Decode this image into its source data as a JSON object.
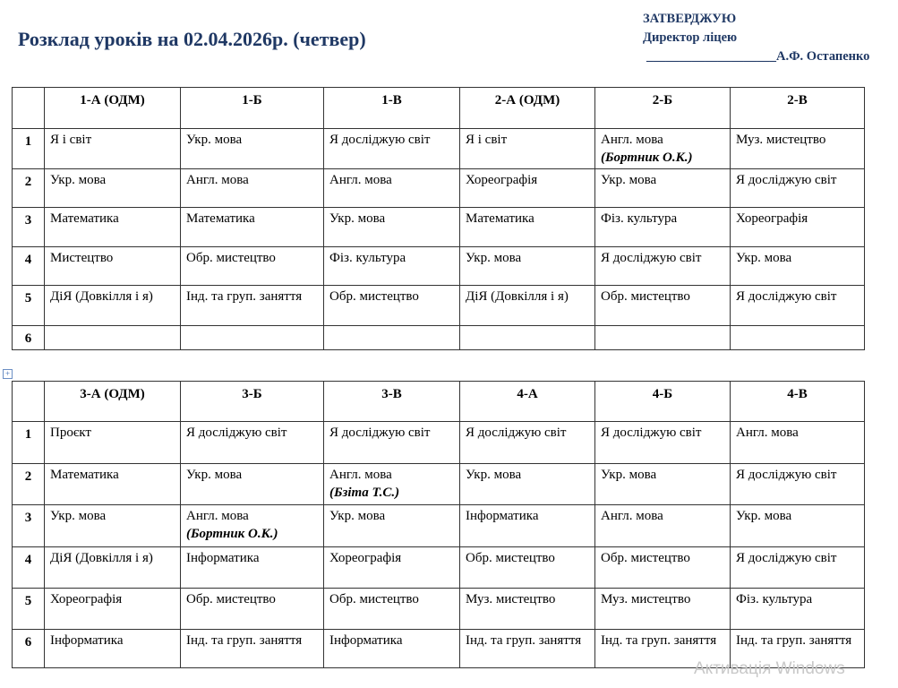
{
  "title": "Розклад уроків на 02.04.2026р. (четвер)",
  "approval": {
    "line1": "ЗАТВЕРДЖУЮ",
    "line2": "Директор ліцею",
    "signature_line": "____________________",
    "name": "А.Ф. Остапенко"
  },
  "watermark": "Активація Windows",
  "tables": [
    {
      "headers": [
        "",
        "1-А (ОДМ)",
        "1-Б",
        "1-В",
        "2-А (ОДМ)",
        "2-Б",
        "2-В"
      ],
      "rows": [
        {
          "num": "1",
          "cells": [
            {
              "text": "Я і світ"
            },
            {
              "text": "Укр. мова"
            },
            {
              "text": "Я досліджую світ"
            },
            {
              "text": "Я і світ"
            },
            {
              "text": "Англ. мова",
              "note": "(Бортник О.К.)"
            },
            {
              "text": "Муз. мистецтво"
            }
          ]
        },
        {
          "num": "2",
          "cells": [
            {
              "text": "Укр. мова"
            },
            {
              "text": "Англ. мова"
            },
            {
              "text": "Англ. мова"
            },
            {
              "text": "Хореографія"
            },
            {
              "text": "Укр. мова"
            },
            {
              "text": "Я досліджую світ"
            }
          ]
        },
        {
          "num": "3",
          "cells": [
            {
              "text": "Математика"
            },
            {
              "text": "Математика"
            },
            {
              "text": "Укр. мова"
            },
            {
              "text": "Математика"
            },
            {
              "text": "Фіз. культура"
            },
            {
              "text": "Хореографія"
            }
          ]
        },
        {
          "num": "4",
          "cells": [
            {
              "text": "Мистецтво"
            },
            {
              "text": "Обр. мистецтво"
            },
            {
              "text": "Фіз. культура"
            },
            {
              "text": "Укр. мова"
            },
            {
              "text": "Я досліджую світ"
            },
            {
              "text": "Укр. мова"
            }
          ]
        },
        {
          "num": "5",
          "cells": [
            {
              "text": "ДіЯ (Довкілля і я)"
            },
            {
              "text": "Інд. та груп. заняття"
            },
            {
              "text": "Обр. мистецтво"
            },
            {
              "text": "ДіЯ (Довкілля і я)"
            },
            {
              "text": "Обр. мистецтво"
            },
            {
              "text": "Я досліджую світ"
            }
          ]
        },
        {
          "num": "6",
          "cells": [
            {
              "text": ""
            },
            {
              "text": ""
            },
            {
              "text": ""
            },
            {
              "text": ""
            },
            {
              "text": ""
            },
            {
              "text": ""
            }
          ]
        }
      ]
    },
    {
      "headers": [
        "",
        "3-А (ОДМ)",
        "3-Б",
        "3-В",
        "4-А",
        "4-Б",
        "4-В"
      ],
      "rows": [
        {
          "num": "1",
          "cells": [
            {
              "text": "Проєкт"
            },
            {
              "text": "Я досліджую світ"
            },
            {
              "text": "Я досліджую світ"
            },
            {
              "text": "Я досліджую світ"
            },
            {
              "text": "Я досліджую світ"
            },
            {
              "text": "Англ. мова"
            }
          ]
        },
        {
          "num": "2",
          "cells": [
            {
              "text": "Математика"
            },
            {
              "text": "Укр. мова"
            },
            {
              "text": "Англ. мова",
              "note": "(Бзіта Т.С.)"
            },
            {
              "text": "Укр. мова"
            },
            {
              "text": "Укр. мова"
            },
            {
              "text": "Я досліджую світ"
            }
          ]
        },
        {
          "num": "3",
          "cells": [
            {
              "text": "Укр. мова"
            },
            {
              "text": "Англ. мова",
              "note": "(Бортник О.К.)"
            },
            {
              "text": "Укр. мова"
            },
            {
              "text": "Інформатика"
            },
            {
              "text": "Англ. мова"
            },
            {
              "text": "Укр. мова"
            }
          ]
        },
        {
          "num": "4",
          "cells": [
            {
              "text": "ДіЯ (Довкілля і я)"
            },
            {
              "text": "Інформатика"
            },
            {
              "text": "Хореографія"
            },
            {
              "text": "Обр. мистецтво"
            },
            {
              "text": "Обр. мистецтво"
            },
            {
              "text": "Я досліджую світ"
            }
          ]
        },
        {
          "num": "5",
          "cells": [
            {
              "text": "Хореографія"
            },
            {
              "text": "Обр. мистецтво"
            },
            {
              "text": "Обр. мистецтво"
            },
            {
              "text": "Муз. мистецтво"
            },
            {
              "text": "Муз. мистецтво"
            },
            {
              "text": "Фіз. культура"
            }
          ]
        },
        {
          "num": "6",
          "cells": [
            {
              "text": "Інформатика"
            },
            {
              "text": "Інд. та груп. заняття"
            },
            {
              "text": "Інформатика"
            },
            {
              "text": "Інд. та груп. заняття"
            },
            {
              "text": "Інд. та груп. заняття"
            },
            {
              "text": "Інд. та груп. заняття"
            }
          ]
        }
      ]
    }
  ]
}
